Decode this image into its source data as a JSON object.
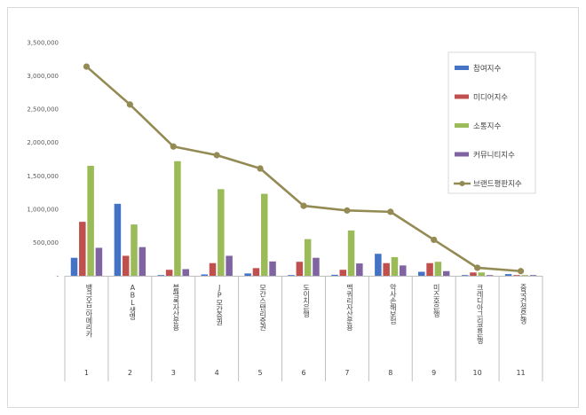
{
  "chart_data": {
    "type": "bar",
    "title": "",
    "xlabel": "",
    "ylabel": "",
    "ylim": [
      0,
      3500000
    ],
    "y_ticks": [
      "-",
      "500,000",
      "1,000,000",
      "1,500,000",
      "2,000,000",
      "2,500,000",
      "3,000,000",
      "3,500,000"
    ],
    "grid": false,
    "legend_position": "right",
    "indices": [
      "1",
      "2",
      "3",
      "4",
      "5",
      "6",
      "7",
      "8",
      "9",
      "10",
      "11"
    ],
    "categories": [
      "뱅크오브아메리카",
      "ABL생명",
      "블랙록자산운용",
      "JP모간증권",
      "모간스탠리증권",
      "도이치은행",
      "맥쿼리자산운용",
      "악사손해보험",
      "미즈호은행",
      "크레디아그리콜은행",
      "중국건설은행"
    ],
    "series": [
      {
        "name": "참여지수",
        "color": "#4472c4",
        "kind": "bar",
        "values": [
          270000,
          1080000,
          10000,
          20000,
          35000,
          10000,
          15000,
          330000,
          60000,
          10000,
          25000
        ]
      },
      {
        "name": "미디어지수",
        "color": "#c0504d",
        "kind": "bar",
        "values": [
          810000,
          300000,
          90000,
          190000,
          115000,
          210000,
          90000,
          190000,
          190000,
          50000,
          0
        ]
      },
      {
        "name": "소통지수",
        "color": "#9bbb59",
        "kind": "bar",
        "values": [
          1650000,
          770000,
          1720000,
          1300000,
          1230000,
          550000,
          680000,
          280000,
          210000,
          50000,
          10000
        ]
      },
      {
        "name": "커뮤니티지수",
        "color": "#8064a2",
        "kind": "bar",
        "values": [
          420000,
          430000,
          100000,
          300000,
          215000,
          270000,
          185000,
          155000,
          70000,
          10000,
          5000
        ]
      },
      {
        "name": "브랜드평판지수",
        "color": "#948a54",
        "kind": "line",
        "values": [
          3140000,
          2570000,
          1940000,
          1810000,
          1610000,
          1050000,
          980000,
          960000,
          540000,
          120000,
          70000
        ]
      }
    ]
  }
}
